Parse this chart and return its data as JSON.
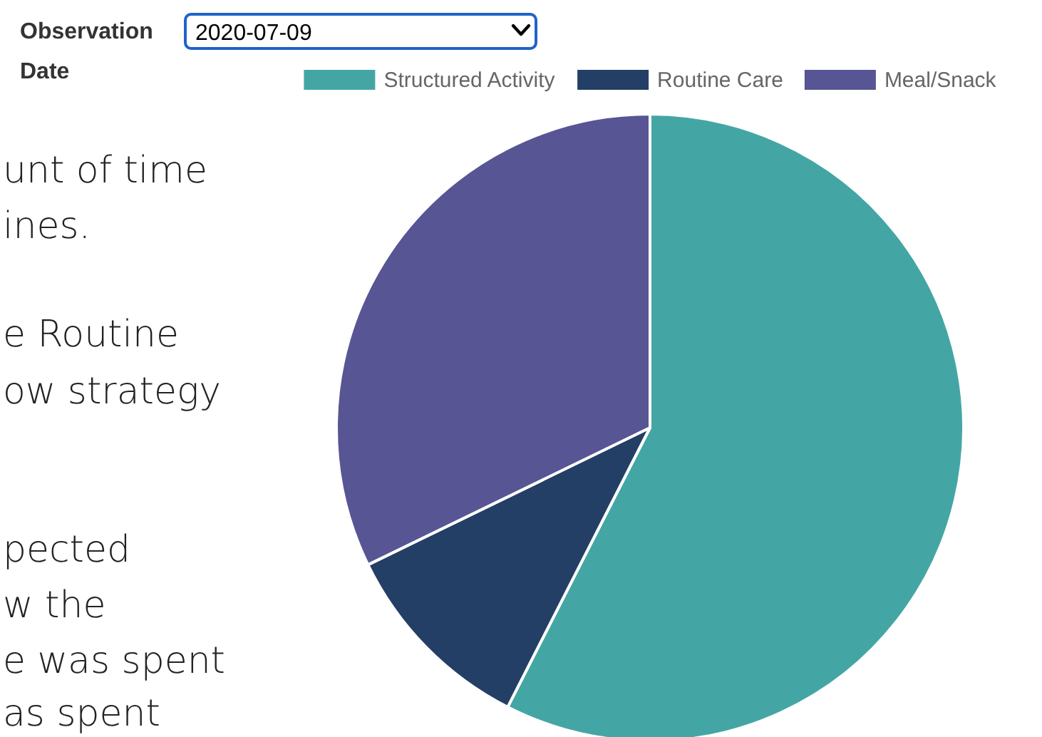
{
  "chart_data": {
    "type": "pie",
    "categories": [
      "Structured Activity",
      "Routine Care",
      "Meal/Snack"
    ],
    "values": [
      57.5,
      10.3,
      32.2
    ],
    "colors": [
      "#44a6a4",
      "#243f66",
      "#575594"
    ],
    "legend": "top",
    "annotations": [
      "Observation Date",
      "2020-07-09",
      "unt of time",
      "ines.",
      "e Routine",
      "ow strategy",
      "pected",
      "w the",
      "e was spent",
      "as spent"
    ]
  }
}
